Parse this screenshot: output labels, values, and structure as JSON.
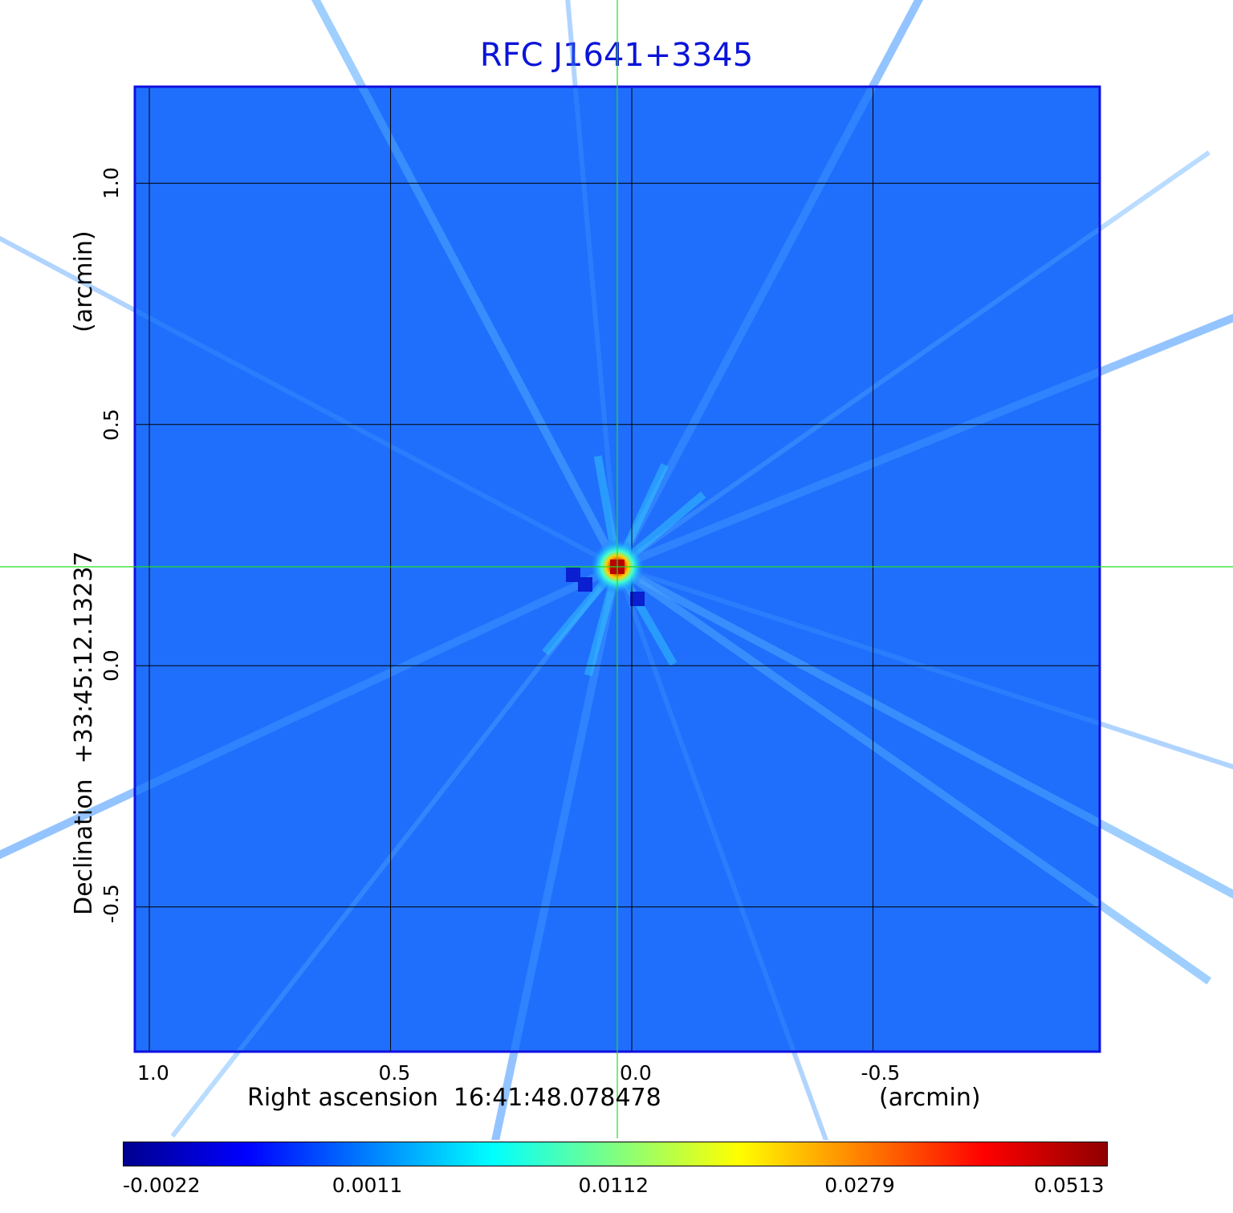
{
  "chart_data": {
    "type": "heatmap",
    "title": "RFC J1641+3345",
    "xlabel": "Right ascension  16:41:48.078478",
    "xunit": "(arcmin)",
    "ylabel": "Declination  +33:45:12.13237",
    "yunit": "(arcmin)",
    "x_axis": {
      "direction": "reversed",
      "ticks": [
        1.0,
        0.5,
        0.0,
        -0.5
      ],
      "tick_labels": [
        "1.0",
        "0.5",
        "0.0",
        "-0.5"
      ],
      "range": [
        1.03,
        -0.97
      ]
    },
    "y_axis": {
      "ticks": [
        1.0,
        0.5,
        0.0,
        -0.5
      ],
      "tick_labels": [
        "1.0",
        "0.5",
        "0.0",
        "-0.5"
      ],
      "range": [
        -0.8,
        1.2
      ]
    },
    "grid": true,
    "crosshair": {
      "x": 0.03,
      "y": 0.205,
      "color": "#22dd22"
    },
    "source_peak": {
      "x": 0.03,
      "y": 0.205,
      "value": 0.0513
    },
    "colormap": "jet",
    "colorbar": {
      "ticks": [
        "-0.0022",
        "0.0011",
        "0.0112",
        "0.0279",
        "0.0513"
      ],
      "position": "bottom"
    },
    "background_color": "#1f6ffc",
    "frame_color": "#1010e0",
    "grid_color": "#000000"
  }
}
